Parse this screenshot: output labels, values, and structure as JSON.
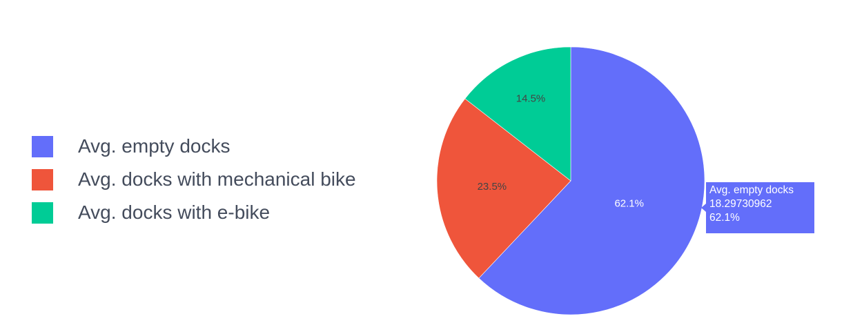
{
  "chart_data": {
    "type": "pie",
    "title": "",
    "slices": [
      {
        "label": "Avg. empty docks",
        "value": 18.29730962,
        "percent_label": "62.1%",
        "color": "#636efa"
      },
      {
        "label": "Avg. docks with mechanical bike",
        "percent_label": "23.5%",
        "color": "#ef553b"
      },
      {
        "label": "Avg. docks with e-bike",
        "percent_label": "14.5%",
        "color": "#00cc96"
      }
    ],
    "shares": [
      62.1,
      23.5,
      14.5
    ],
    "legend_position": "left",
    "hover_tooltip": {
      "slice": "Avg. empty docks",
      "lines": [
        "Avg. empty docks",
        "18.29730962",
        "62.1%"
      ]
    }
  }
}
